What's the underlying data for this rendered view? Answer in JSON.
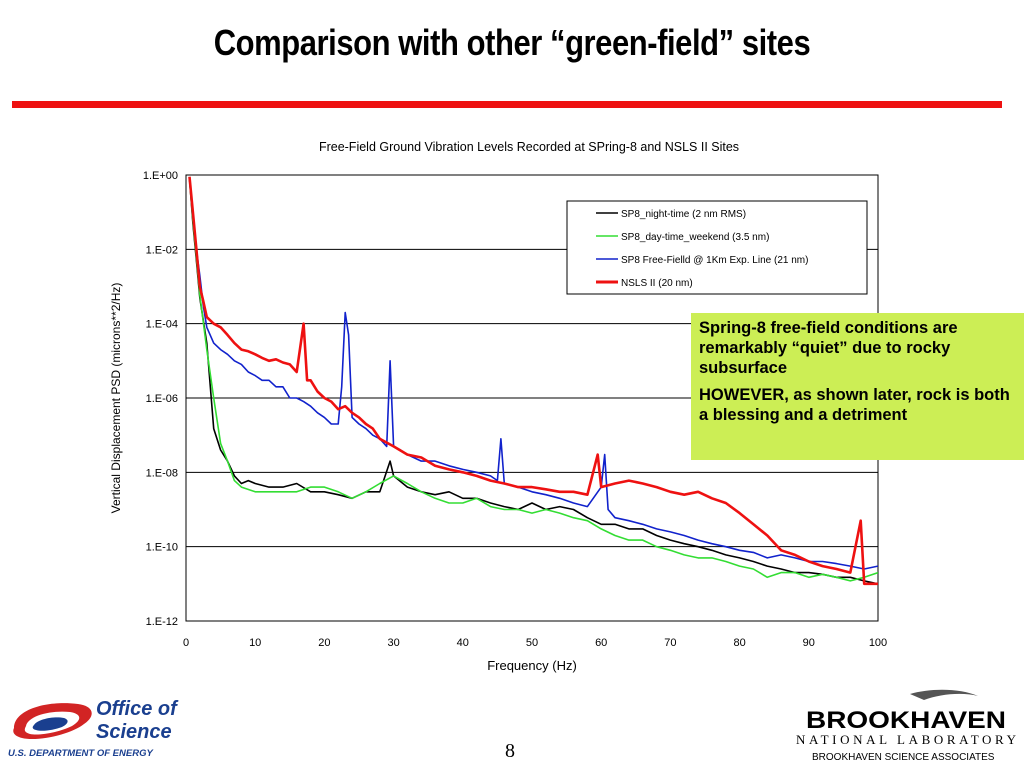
{
  "slide": {
    "title": "Comparison with other “green-field” sites",
    "page_number": "8",
    "colors": {
      "title_rule": "#ee1111",
      "callout_bg": "#ccee55",
      "doe_blue": "#1a3f8f",
      "doe_red": "#d22424"
    }
  },
  "callout": {
    "paragraph1": "Spring-8 free-field conditions are remarkably “quiet” due to rocky subsurface",
    "paragraph2": "HOWEVER, as shown later, rock is both a blessing and a detriment"
  },
  "footer": {
    "doe_logo": {
      "line1": "Office of",
      "line2": "Science",
      "line3": "U.S. DEPARTMENT OF ENERGY",
      "icon": "doe-swirl-icon"
    },
    "bnl_logo": {
      "line1": "BROOKHAVEN",
      "line2": "NATIONAL LABORATORY",
      "line3": "BROOKHAVEN SCIENCE ASSOCIATES",
      "icon": "bnl-swoosh-icon"
    }
  },
  "chart_data": {
    "type": "line",
    "title": "Free-Field Ground Vibration Levels Recorded at SPring-8 and NSLS II Sites",
    "xlabel": "Frequency (Hz)",
    "ylabel": "Vertical Displacement PSD (microns**2/Hz)",
    "xlim": [
      0,
      100
    ],
    "ylim": [
      1e-12,
      1
    ],
    "yscale": "log",
    "grid": "horizontal",
    "legend_position": "top-right",
    "x_ticks": [
      "0",
      "10",
      "20",
      "30",
      "40",
      "50",
      "60",
      "70",
      "80",
      "90",
      "100"
    ],
    "y_ticks": [
      "1.E+00",
      "1.E-02",
      "1.E-04",
      "1.E-06",
      "1.E-08",
      "1.E-10",
      "1.E-12"
    ],
    "series": [
      {
        "name": "SP8_night-time (2 nm RMS)",
        "color": "#000000",
        "points": [
          [
            0.5,
            0.8
          ],
          [
            1,
            0.05
          ],
          [
            1.5,
            0.005
          ],
          [
            2,
            0.0005
          ],
          [
            3,
            3e-05
          ],
          [
            4,
            1.5e-07
          ],
          [
            5,
            4e-08
          ],
          [
            6,
            2e-08
          ],
          [
            7,
            8e-09
          ],
          [
            8,
            5e-09
          ],
          [
            9,
            6e-09
          ],
          [
            10,
            5e-09
          ],
          [
            12,
            4e-09
          ],
          [
            14,
            4e-09
          ],
          [
            16,
            5e-09
          ],
          [
            18,
            3e-09
          ],
          [
            20,
            3e-09
          ],
          [
            22,
            2.5e-09
          ],
          [
            24,
            2e-09
          ],
          [
            26,
            3e-09
          ],
          [
            28,
            3e-09
          ],
          [
            29.5,
            2e-08
          ],
          [
            30,
            8e-09
          ],
          [
            32,
            4e-09
          ],
          [
            34,
            3e-09
          ],
          [
            36,
            2.5e-09
          ],
          [
            38,
            3e-09
          ],
          [
            40,
            2e-09
          ],
          [
            42,
            2e-09
          ],
          [
            44,
            1.5e-09
          ],
          [
            46,
            1.2e-09
          ],
          [
            48,
            1e-09
          ],
          [
            50,
            1.5e-09
          ],
          [
            52,
            1e-09
          ],
          [
            54,
            1.2e-09
          ],
          [
            56,
            1e-09
          ],
          [
            58,
            6e-10
          ],
          [
            60,
            4e-10
          ],
          [
            62,
            4e-10
          ],
          [
            64,
            3e-10
          ],
          [
            66,
            3e-10
          ],
          [
            68,
            2e-10
          ],
          [
            70,
            1.5e-10
          ],
          [
            72,
            1.2e-10
          ],
          [
            74,
            1e-10
          ],
          [
            76,
            8e-11
          ],
          [
            78,
            6e-11
          ],
          [
            80,
            5e-11
          ],
          [
            82,
            4e-11
          ],
          [
            84,
            3e-11
          ],
          [
            86,
            2.5e-11
          ],
          [
            88,
            2e-11
          ],
          [
            90,
            2e-11
          ],
          [
            92,
            1.8e-11
          ],
          [
            94,
            1.5e-11
          ],
          [
            96,
            1.5e-11
          ],
          [
            98,
            1.2e-11
          ],
          [
            100,
            1e-11
          ]
        ]
      },
      {
        "name": "SP8_day-time_weekend (3.5 nm)",
        "color": "#33dd33",
        "points": [
          [
            0.5,
            0.8
          ],
          [
            1,
            0.06
          ],
          [
            1.5,
            0.006
          ],
          [
            2,
            0.0006
          ],
          [
            3,
            2e-05
          ],
          [
            4,
            1e-06
          ],
          [
            5,
            6e-08
          ],
          [
            6,
            2e-08
          ],
          [
            7,
            6e-09
          ],
          [
            8,
            4e-09
          ],
          [
            10,
            3e-09
          ],
          [
            12,
            3e-09
          ],
          [
            14,
            3e-09
          ],
          [
            16,
            3e-09
          ],
          [
            18,
            4e-09
          ],
          [
            20,
            4e-09
          ],
          [
            22,
            3e-09
          ],
          [
            24,
            2e-09
          ],
          [
            26,
            3e-09
          ],
          [
            28,
            5e-09
          ],
          [
            30,
            8e-09
          ],
          [
            32,
            5e-09
          ],
          [
            34,
            3e-09
          ],
          [
            36,
            2e-09
          ],
          [
            38,
            1.5e-09
          ],
          [
            40,
            1.5e-09
          ],
          [
            42,
            2e-09
          ],
          [
            44,
            1.2e-09
          ],
          [
            46,
            1e-09
          ],
          [
            48,
            1e-09
          ],
          [
            50,
            8e-10
          ],
          [
            52,
            1e-09
          ],
          [
            54,
            8e-10
          ],
          [
            56,
            6e-10
          ],
          [
            58,
            5e-10
          ],
          [
            60,
            3e-10
          ],
          [
            62,
            2e-10
          ],
          [
            64,
            1.5e-10
          ],
          [
            66,
            1.5e-10
          ],
          [
            68,
            1e-10
          ],
          [
            70,
            8e-11
          ],
          [
            72,
            6e-11
          ],
          [
            74,
            5e-11
          ],
          [
            76,
            5e-11
          ],
          [
            78,
            4e-11
          ],
          [
            80,
            3e-11
          ],
          [
            82,
            2.5e-11
          ],
          [
            84,
            1.5e-11
          ],
          [
            86,
            2e-11
          ],
          [
            88,
            2e-11
          ],
          [
            90,
            1.5e-11
          ],
          [
            92,
            1.8e-11
          ],
          [
            94,
            1.5e-11
          ],
          [
            96,
            1.2e-11
          ],
          [
            98,
            1.5e-11
          ],
          [
            100,
            2e-11
          ]
        ]
      },
      {
        "name": "SP8 Free-Fielld @ 1Km Exp. Line (21 nm)",
        "color": "#1122cc",
        "points": [
          [
            0.5,
            0.8
          ],
          [
            1,
            0.08
          ],
          [
            1.5,
            0.01
          ],
          [
            2,
            0.002
          ],
          [
            2.5,
            0.0003
          ],
          [
            3,
            8e-05
          ],
          [
            4,
            3e-05
          ],
          [
            5,
            2e-05
          ],
          [
            6,
            1.5e-05
          ],
          [
            7,
            1e-05
          ],
          [
            8,
            8e-06
          ],
          [
            9,
            5e-06
          ],
          [
            10,
            4e-06
          ],
          [
            11,
            3e-06
          ],
          [
            12,
            3e-06
          ],
          [
            13,
            2e-06
          ],
          [
            14,
            2e-06
          ],
          [
            15,
            1e-06
          ],
          [
            16,
            1e-06
          ],
          [
            17,
            8e-07
          ],
          [
            18,
            6e-07
          ],
          [
            19,
            4e-07
          ],
          [
            20,
            3e-07
          ],
          [
            21,
            2e-07
          ],
          [
            22,
            2e-07
          ],
          [
            22.5,
            2e-06
          ],
          [
            23,
            0.0002
          ],
          [
            23.5,
            5e-05
          ],
          [
            24,
            3e-07
          ],
          [
            25,
            2e-07
          ],
          [
            26,
            1.5e-07
          ],
          [
            27,
            1e-07
          ],
          [
            28,
            8e-08
          ],
          [
            29,
            5e-08
          ],
          [
            29.5,
            1e-05
          ],
          [
            30,
            5e-08
          ],
          [
            31,
            4e-08
          ],
          [
            32,
            3e-08
          ],
          [
            34,
            2e-08
          ],
          [
            36,
            2e-08
          ],
          [
            38,
            1.5e-08
          ],
          [
            40,
            1.2e-08
          ],
          [
            42,
            1e-08
          ],
          [
            44,
            8e-09
          ],
          [
            45,
            6e-09
          ],
          [
            45.5,
            8e-08
          ],
          [
            46,
            5e-09
          ],
          [
            48,
            4e-09
          ],
          [
            50,
            3e-09
          ],
          [
            52,
            2.5e-09
          ],
          [
            54,
            2e-09
          ],
          [
            56,
            1.5e-09
          ],
          [
            58,
            1.2e-09
          ],
          [
            60,
            4e-09
          ],
          [
            60.5,
            3e-08
          ],
          [
            61,
            1e-09
          ],
          [
            62,
            6e-10
          ],
          [
            64,
            5e-10
          ],
          [
            66,
            4e-10
          ],
          [
            68,
            3e-10
          ],
          [
            70,
            2.5e-10
          ],
          [
            72,
            2e-10
          ],
          [
            74,
            1.5e-10
          ],
          [
            76,
            1.2e-10
          ],
          [
            78,
            1e-10
          ],
          [
            80,
            8e-11
          ],
          [
            82,
            7e-11
          ],
          [
            84,
            5e-11
          ],
          [
            86,
            6e-11
          ],
          [
            88,
            5e-11
          ],
          [
            90,
            4e-11
          ],
          [
            92,
            4e-11
          ],
          [
            94,
            3.5e-11
          ],
          [
            96,
            3e-11
          ],
          [
            98,
            2.5e-11
          ],
          [
            100,
            3e-11
          ]
        ]
      },
      {
        "name": "NSLS II (20 nm)",
        "color": "#ee1111",
        "points": [
          [
            0.5,
            0.9
          ],
          [
            1,
            0.1
          ],
          [
            1.5,
            0.01
          ],
          [
            2,
            0.001
          ],
          [
            2.5,
            0.0004
          ],
          [
            3,
            0.00015
          ],
          [
            4,
            0.0001
          ],
          [
            5,
            8e-05
          ],
          [
            6,
            5e-05
          ],
          [
            7,
            3e-05
          ],
          [
            8,
            2e-05
          ],
          [
            9,
            1.8e-05
          ],
          [
            10,
            1.5e-05
          ],
          [
            11,
            1.2e-05
          ],
          [
            12,
            1e-05
          ],
          [
            13,
            1.1e-05
          ],
          [
            14,
            9e-06
          ],
          [
            15,
            8e-06
          ],
          [
            16,
            5e-06
          ],
          [
            17,
            0.0001
          ],
          [
            17.5,
            3e-06
          ],
          [
            18,
            3e-06
          ],
          [
            19,
            1.5e-06
          ],
          [
            20,
            1e-06
          ],
          [
            21,
            8e-07
          ],
          [
            22,
            5e-07
          ],
          [
            23,
            6e-07
          ],
          [
            24,
            4e-07
          ],
          [
            25,
            3e-07
          ],
          [
            26,
            2e-07
          ],
          [
            27,
            1.5e-07
          ],
          [
            28,
            8e-08
          ],
          [
            30,
            5e-08
          ],
          [
            32,
            3e-08
          ],
          [
            34,
            2.5e-08
          ],
          [
            36,
            1.5e-08
          ],
          [
            38,
            1.2e-08
          ],
          [
            40,
            1e-08
          ],
          [
            42,
            8e-09
          ],
          [
            44,
            6e-09
          ],
          [
            46,
            5e-09
          ],
          [
            48,
            4e-09
          ],
          [
            50,
            4e-09
          ],
          [
            52,
            3.5e-09
          ],
          [
            54,
            3e-09
          ],
          [
            56,
            3e-09
          ],
          [
            58,
            2.5e-09
          ],
          [
            59.5,
            3e-08
          ],
          [
            60,
            4e-09
          ],
          [
            62,
            5e-09
          ],
          [
            64,
            6e-09
          ],
          [
            66,
            5e-09
          ],
          [
            68,
            4e-09
          ],
          [
            70,
            3e-09
          ],
          [
            72,
            2.5e-09
          ],
          [
            74,
            3e-09
          ],
          [
            76,
            2e-09
          ],
          [
            78,
            1.5e-09
          ],
          [
            80,
            8e-10
          ],
          [
            82,
            4e-10
          ],
          [
            84,
            2e-10
          ],
          [
            86,
            8e-11
          ],
          [
            88,
            6e-11
          ],
          [
            90,
            4e-11
          ],
          [
            92,
            3e-11
          ],
          [
            94,
            2.5e-11
          ],
          [
            96,
            2e-11
          ],
          [
            97.5,
            5e-10
          ],
          [
            98,
            1e-11
          ],
          [
            100,
            1e-11
          ]
        ]
      }
    ]
  }
}
